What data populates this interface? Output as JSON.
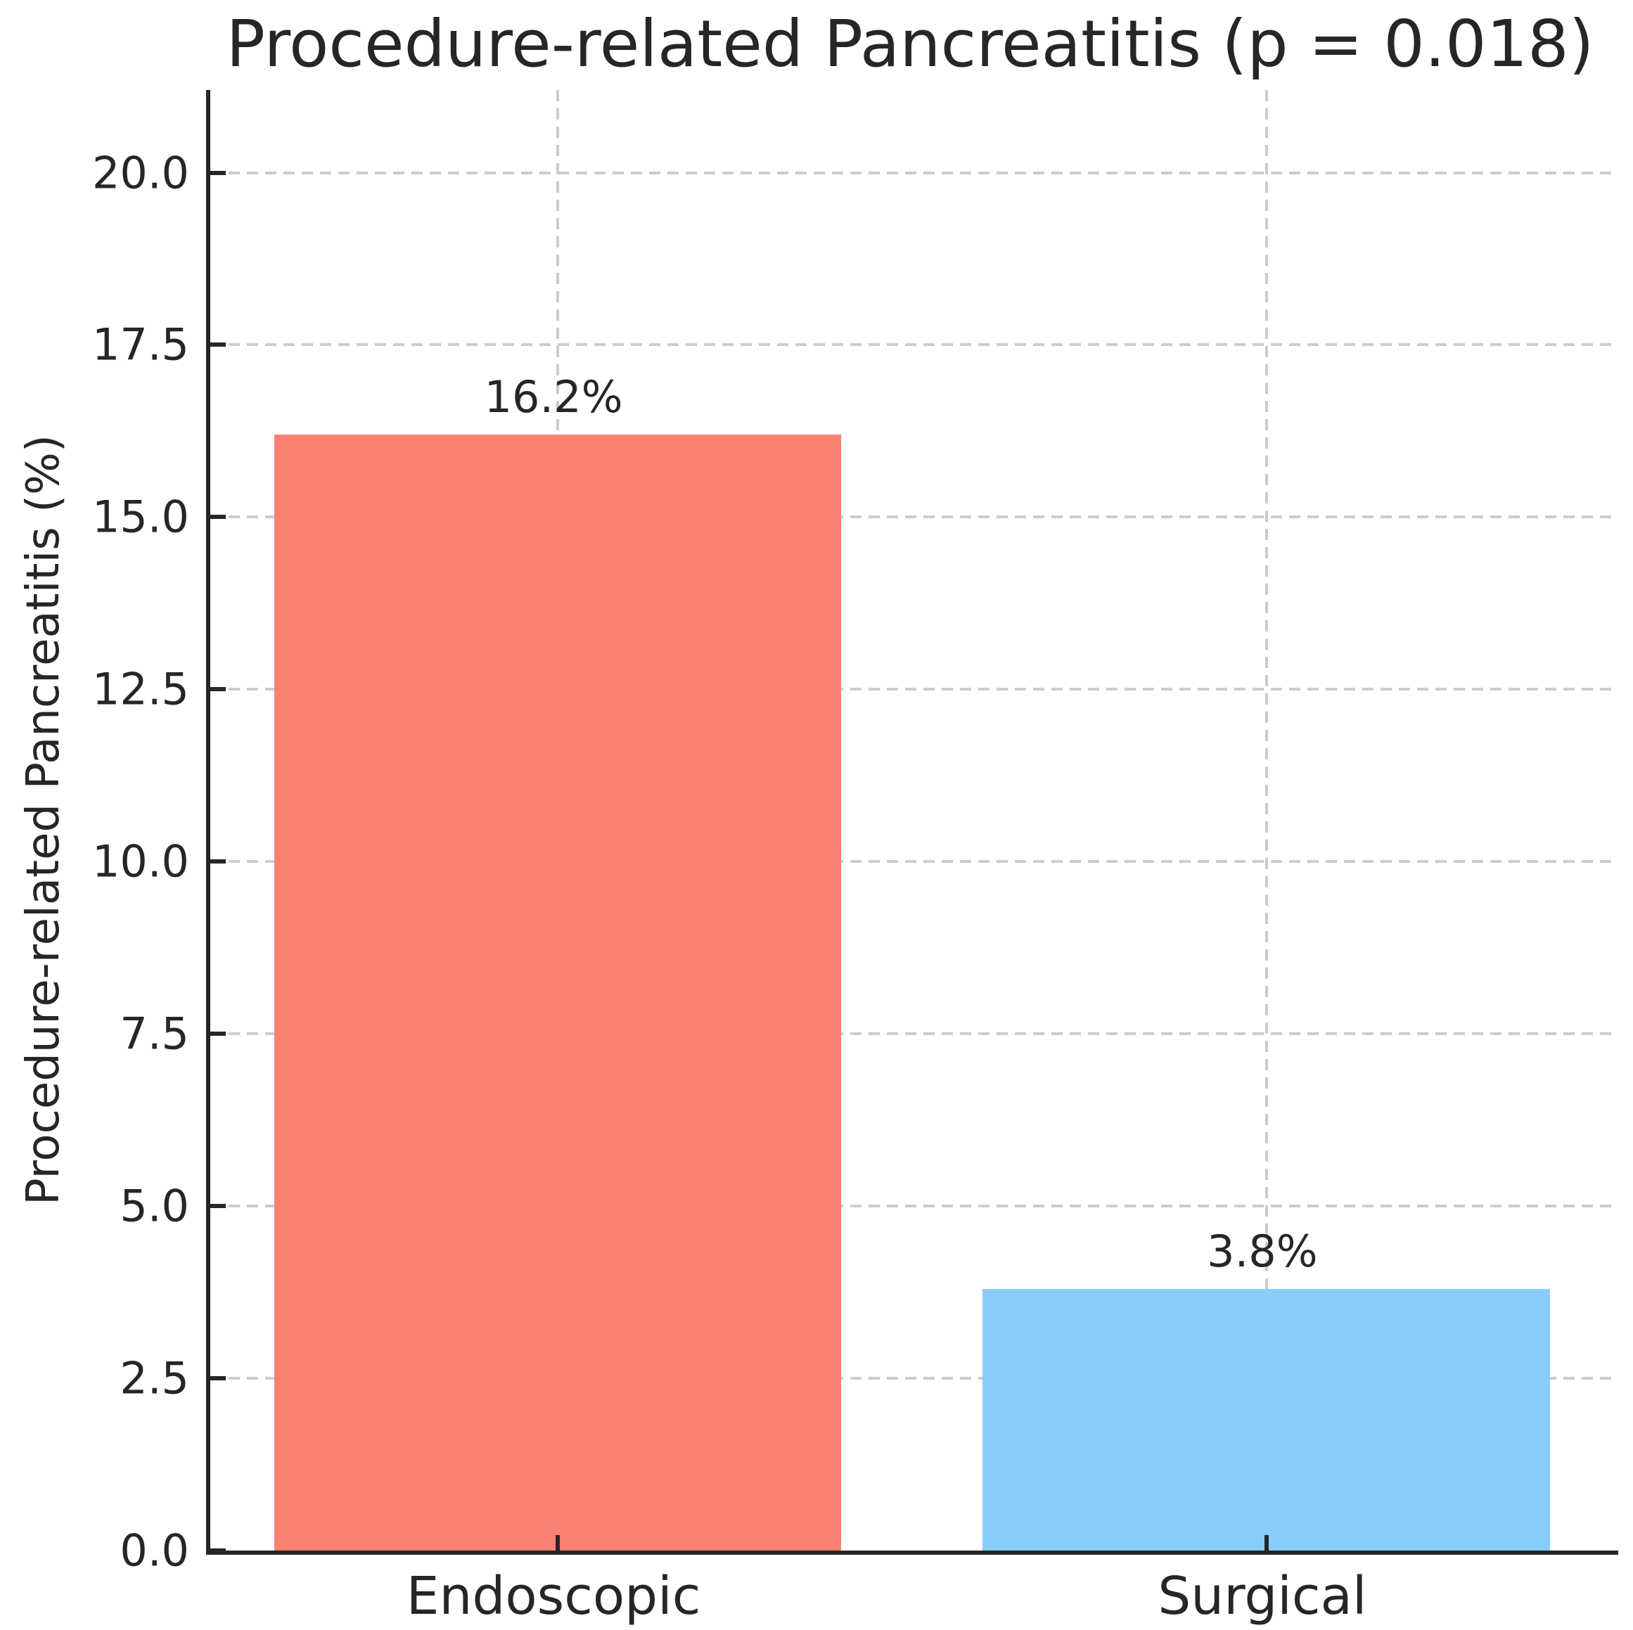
{
  "chart_data": {
    "type": "bar",
    "title": "Procedure-related Pancreatitis (p = 0.018)",
    "categories": [
      "Endoscopic",
      "Surgical"
    ],
    "values": [
      16.2,
      3.8
    ],
    "value_labels": [
      "16.2%",
      "3.8%"
    ],
    "bar_colors": [
      "#fa8072",
      "#87cefa"
    ],
    "xlabel": "",
    "ylabel": "Procedure-related Pancreatitis (%)",
    "ylim": [
      0,
      21.2
    ],
    "yticks": [
      0.0,
      2.5,
      5.0,
      7.5,
      10.0,
      12.5,
      15.0,
      17.5,
      20.0
    ],
    "ytick_labels": [
      "0.0",
      "2.5",
      "5.0",
      "7.5",
      "10.0",
      "12.5",
      "15.0",
      "17.5",
      "20.0"
    ],
    "grid": "dashed both horizontal and vertical",
    "legend": "none"
  },
  "colors": {
    "endoscopic_bar": "#fa8072",
    "surgical_bar": "#87cefa",
    "grid": "#cccccc",
    "spine": "#262626",
    "text": "#262626",
    "background": "#ffffff"
  }
}
